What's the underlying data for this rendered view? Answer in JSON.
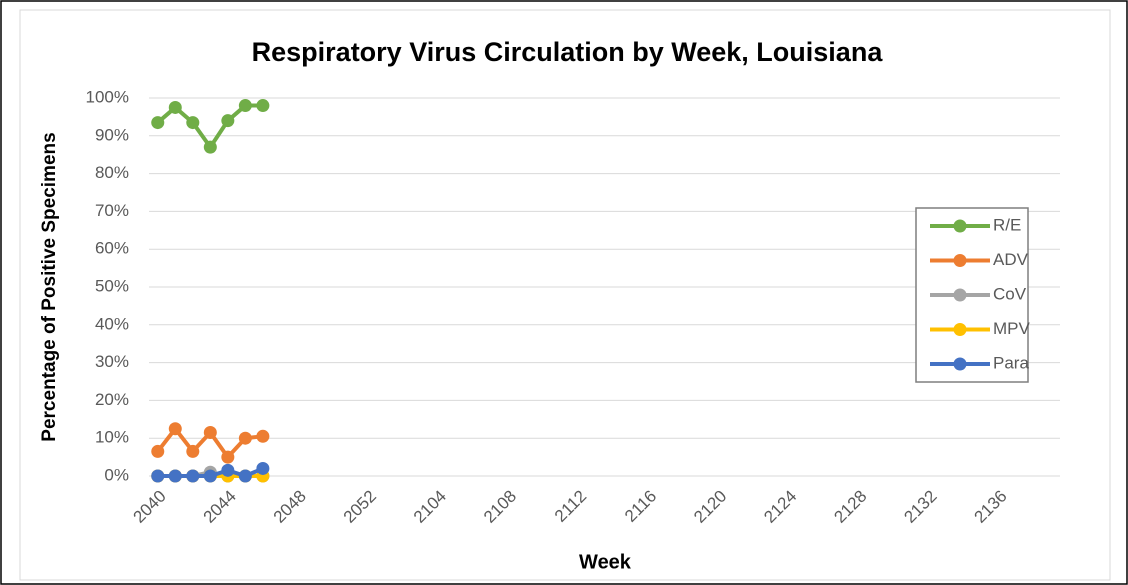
{
  "chart_data": {
    "type": "line",
    "title": "Respiratory Virus Circulation by Week, Louisiana",
    "x_label": "Week",
    "y_label": "Percentage of Positive Specimens",
    "categories": [
      "2040",
      null,
      null,
      null,
      "2044",
      null,
      null,
      null,
      "2048",
      null,
      null,
      null,
      "2052",
      null,
      null,
      null,
      "2104",
      null,
      null,
      null,
      "2108",
      null,
      null,
      null,
      "2112",
      null,
      null,
      null,
      "2116",
      null,
      null,
      null,
      "2120",
      null,
      null,
      null,
      "2124",
      null,
      null,
      null,
      "2128",
      null,
      null,
      null,
      "2132",
      null,
      null,
      null,
      "2136",
      null,
      null,
      null
    ],
    "series": [
      {
        "name": "R/E",
        "color": "#70ad47",
        "values": [
          93.5,
          97.5,
          93.5,
          87,
          94,
          98,
          98,
          null,
          null,
          null,
          null,
          null,
          null,
          null,
          null,
          null,
          null,
          null,
          null,
          null,
          null,
          null,
          null,
          null,
          null,
          null,
          null,
          null,
          null,
          null,
          null,
          null,
          null,
          null,
          null,
          null,
          null,
          null,
          null,
          null,
          null,
          null,
          null,
          null,
          null,
          null,
          null,
          null,
          null,
          null,
          null,
          null
        ]
      },
      {
        "name": "ADV",
        "color": "#ed7d31",
        "values": [
          6.5,
          12.5,
          6.5,
          11.5,
          5,
          10,
          10.5,
          null,
          null,
          null,
          null,
          null,
          null,
          null,
          null,
          null,
          null,
          null,
          null,
          null,
          null,
          null,
          null,
          null,
          null,
          null,
          null,
          null,
          null,
          null,
          null,
          null,
          null,
          null,
          null,
          null,
          null,
          null,
          null,
          null,
          null,
          null,
          null,
          null,
          null,
          null,
          null,
          null,
          null,
          null,
          null,
          null
        ]
      },
      {
        "name": "CoV",
        "color": "#a5a5a5",
        "values": [
          0,
          0,
          0,
          1,
          0,
          0,
          0,
          null,
          null,
          null,
          null,
          null,
          null,
          null,
          null,
          null,
          null,
          null,
          null,
          null,
          null,
          null,
          null,
          null,
          null,
          null,
          null,
          null,
          null,
          null,
          null,
          null,
          null,
          null,
          null,
          null,
          null,
          null,
          null,
          null,
          null,
          null,
          null,
          null,
          null,
          null,
          null,
          null,
          null,
          null,
          null,
          null
        ]
      },
      {
        "name": "MPV",
        "color": "#ffc000",
        "values": [
          0,
          0,
          0,
          0,
          0,
          0,
          0,
          null,
          null,
          null,
          null,
          null,
          null,
          null,
          null,
          null,
          null,
          null,
          null,
          null,
          null,
          null,
          null,
          null,
          null,
          null,
          null,
          null,
          null,
          null,
          null,
          null,
          null,
          null,
          null,
          null,
          null,
          null,
          null,
          null,
          null,
          null,
          null,
          null,
          null,
          null,
          null,
          null,
          null,
          null,
          null,
          null
        ]
      },
      {
        "name": "Para",
        "color": "#4472c4",
        "values": [
          0,
          0,
          0,
          0,
          1.5,
          0,
          2,
          null,
          null,
          null,
          null,
          null,
          null,
          null,
          null,
          null,
          null,
          null,
          null,
          null,
          null,
          null,
          null,
          null,
          null,
          null,
          null,
          null,
          null,
          null,
          null,
          null,
          null,
          null,
          null,
          null,
          null,
          null,
          null,
          null,
          null,
          null,
          null,
          null,
          null,
          null,
          null,
          null,
          null,
          null,
          null,
          null
        ]
      }
    ],
    "ylim": [
      0,
      100
    ],
    "yticks": [
      {
        "value": 0,
        "label": "0%"
      },
      {
        "value": 10,
        "label": "10%"
      },
      {
        "value": 20,
        "label": "20%"
      },
      {
        "value": 30,
        "label": "30%"
      },
      {
        "value": 40,
        "label": "40%"
      },
      {
        "value": 50,
        "label": "50%"
      },
      {
        "value": 60,
        "label": "60%"
      },
      {
        "value": 70,
        "label": "70%"
      },
      {
        "value": 80,
        "label": "80%"
      },
      {
        "value": 90,
        "label": "90%"
      },
      {
        "value": 100,
        "label": "100%"
      }
    ],
    "grid": true,
    "legend": "right"
  }
}
